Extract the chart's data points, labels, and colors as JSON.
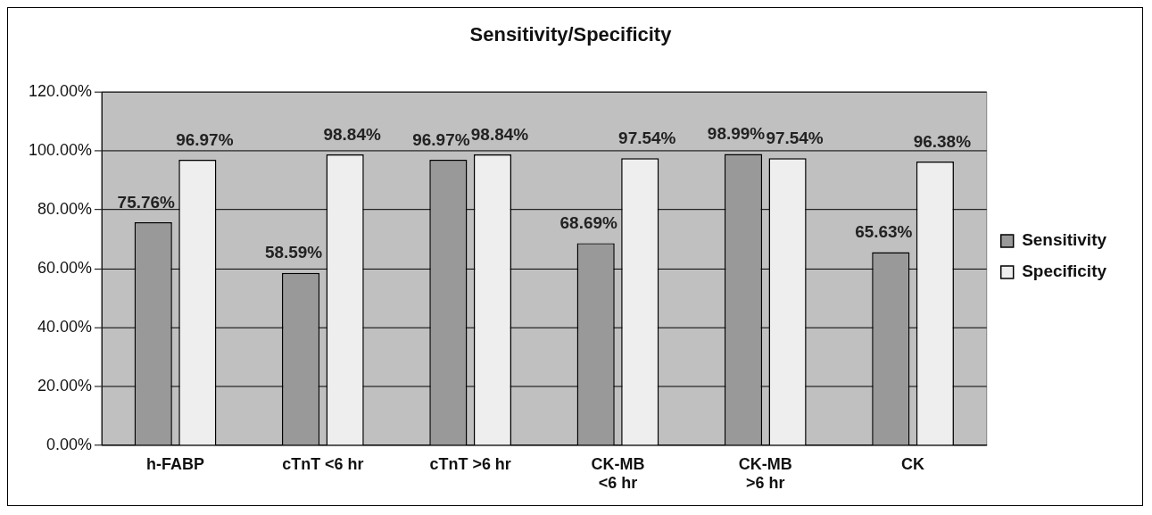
{
  "chart_data": {
    "type": "bar",
    "title": "Sensitivity/Specificity",
    "categories": [
      "h-FABP",
      "cTnT <6 hr",
      "cTnT >6 hr",
      "CK-MB <6 hr",
      "CK-MB >6 hr",
      "CK"
    ],
    "series": [
      {
        "name": "Sensitivity",
        "color": "#999999",
        "values": [
          75.76,
          58.59,
          96.97,
          68.69,
          98.99,
          65.63
        ],
        "value_labels": [
          "75.76%",
          "58.59%",
          "96.97%",
          "68.69%",
          "98.99%",
          "65.63%"
        ]
      },
      {
        "name": "Specificity",
        "color": "#eeeeee",
        "values": [
          96.97,
          98.84,
          98.84,
          97.54,
          97.54,
          96.38
        ],
        "value_labels": [
          "96.97%",
          "98.84%",
          "98.84%",
          "97.54%",
          "97.54%",
          "96.38%"
        ]
      }
    ],
    "ylim": [
      0,
      120
    ],
    "yticks": [
      {
        "value": 0,
        "label": "0.00%"
      },
      {
        "value": 20,
        "label": "20.00%"
      },
      {
        "value": 40,
        "label": "40.00%"
      },
      {
        "value": 60,
        "label": "60.00%"
      },
      {
        "value": 80,
        "label": "80.00%"
      },
      {
        "value": 100,
        "label": "100.00%"
      },
      {
        "value": 120,
        "label": "120.00%"
      }
    ],
    "grid": "y",
    "legend": "right"
  }
}
